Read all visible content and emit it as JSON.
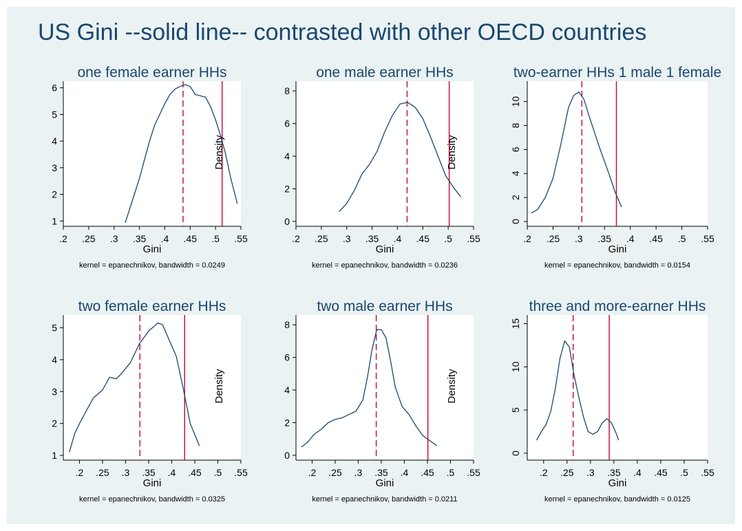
{
  "figure": {
    "title": "US Gini --solid line-- contrasted with other OECD countries"
  },
  "colors": {
    "background": "#eaf2f3",
    "plot_region": "#ffffff",
    "density_line": "#1a476f",
    "us_line": "#c10534",
    "oecd_line": "#c10534",
    "title_text": "#1a476f"
  },
  "chart_data": [
    {
      "type": "line",
      "title": "one female earner HHs",
      "xlabel": "Gini",
      "ylabel": "Density",
      "note": "kernel = epanechnikov, bandwidth = 0.0249",
      "xlim": [
        0.2,
        0.55
      ],
      "ylim": [
        0.8,
        6.25
      ],
      "xticks": [
        ".2",
        ".25",
        ".3",
        ".35",
        ".4",
        ".45",
        ".5",
        ".55"
      ],
      "xtick_values": [
        0.2,
        0.25,
        0.3,
        0.35,
        0.4,
        0.45,
        0.5,
        0.55
      ],
      "yticks": [
        "1",
        "2",
        "3",
        "4",
        "5",
        "6"
      ],
      "ytick_values": [
        1,
        2,
        3,
        4,
        5,
        6
      ],
      "x": [
        0.322,
        0.33,
        0.34,
        0.35,
        0.36,
        0.37,
        0.38,
        0.39,
        0.4,
        0.41,
        0.42,
        0.43,
        0.44,
        0.45,
        0.46,
        0.47,
        0.48,
        0.49,
        0.5,
        0.51,
        0.52,
        0.53,
        0.543
      ],
      "y": [
        0.93,
        1.4,
        2.0,
        2.6,
        3.3,
        4.0,
        4.6,
        5.0,
        5.4,
        5.75,
        5.95,
        6.05,
        6.12,
        6.05,
        5.75,
        5.7,
        5.65,
        5.3,
        4.8,
        4.2,
        3.5,
        2.6,
        1.65
      ],
      "us_value": 0.513,
      "oecd_value": 0.436
    },
    {
      "type": "line",
      "title": "one male earner HHs",
      "xlabel": "Gini",
      "ylabel": "Density",
      "note": "kernel = epanechnikov, bandwidth = 0.0236",
      "xlim": [
        0.2,
        0.55
      ],
      "ylim": [
        -0.3,
        8.6
      ],
      "xticks": [
        ".2",
        ".25",
        ".3",
        ".35",
        ".4",
        ".45",
        ".5",
        ".55"
      ],
      "xtick_values": [
        0.2,
        0.25,
        0.3,
        0.35,
        0.4,
        0.45,
        0.5,
        0.55
      ],
      "yticks": [
        "0",
        "2",
        "4",
        "6",
        "8"
      ],
      "ytick_values": [
        0,
        2,
        4,
        6,
        8
      ],
      "x": [
        0.285,
        0.3,
        0.315,
        0.33,
        0.345,
        0.36,
        0.375,
        0.39,
        0.405,
        0.42,
        0.435,
        0.45,
        0.465,
        0.48,
        0.495,
        0.51,
        0.525
      ],
      "y": [
        0.6,
        1.1,
        1.9,
        2.9,
        3.5,
        4.3,
        5.5,
        6.5,
        7.2,
        7.3,
        7.0,
        6.3,
        5.2,
        4.0,
        2.8,
        2.1,
        1.5
      ],
      "us_value": 0.502,
      "oecd_value": 0.419
    },
    {
      "type": "line",
      "title": "two-earner HHs 1 male 1 female",
      "xlabel": "Gini",
      "ylabel": "",
      "note": "kernel = epanechnikov, bandwidth = 0.0154",
      "xlim": [
        0.2,
        0.55
      ],
      "ylim": [
        -0.4,
        11.7
      ],
      "xticks": [
        ".2",
        ".25",
        ".3",
        ".35",
        ".4",
        ".45",
        ".5",
        ".55"
      ],
      "xtick_values": [
        0.2,
        0.25,
        0.3,
        0.35,
        0.4,
        0.45,
        0.5,
        0.55
      ],
      "yticks": [
        "0",
        "2",
        "4",
        "6",
        "8",
        "10"
      ],
      "ytick_values": [
        0,
        2,
        4,
        6,
        8,
        10
      ],
      "x": [
        0.208,
        0.22,
        0.235,
        0.25,
        0.265,
        0.28,
        0.29,
        0.3,
        0.31,
        0.32,
        0.33,
        0.34,
        0.35,
        0.36,
        0.37,
        0.383
      ],
      "y": [
        0.7,
        1.0,
        2.0,
        3.6,
        6.4,
        9.5,
        10.5,
        10.8,
        10.2,
        8.8,
        7.5,
        6.2,
        5.0,
        3.8,
        2.5,
        1.2
      ],
      "us_value": 0.373,
      "oecd_value": 0.306
    },
    {
      "type": "line",
      "title": "two female earner HHs",
      "xlabel": "Gini",
      "ylabel": "Density",
      "note": "kernel = epanechnikov, bandwidth = 0.0325",
      "xlim": [
        0.165,
        0.55
      ],
      "ylim": [
        0.85,
        5.4
      ],
      "xticks": [
        ".2",
        ".25",
        ".3",
        ".35",
        ".4",
        ".45",
        ".5",
        ".55"
      ],
      "xtick_values": [
        0.2,
        0.25,
        0.3,
        0.35,
        0.4,
        0.45,
        0.5,
        0.55
      ],
      "yticks": [
        "1",
        "2",
        "3",
        "4",
        "5"
      ],
      "ytick_values": [
        1,
        2,
        3,
        4,
        5
      ],
      "x": [
        0.178,
        0.19,
        0.2,
        0.215,
        0.23,
        0.25,
        0.265,
        0.28,
        0.29,
        0.31,
        0.33,
        0.35,
        0.37,
        0.38,
        0.395,
        0.41,
        0.425,
        0.44,
        0.46
      ],
      "y": [
        1.1,
        1.7,
        2.0,
        2.4,
        2.8,
        3.05,
        3.45,
        3.4,
        3.55,
        3.9,
        4.5,
        4.9,
        5.15,
        5.1,
        4.6,
        4.1,
        3.1,
        2.0,
        1.3
      ],
      "us_value": 0.428,
      "oecd_value": 0.331
    },
    {
      "type": "line",
      "title": "two male earner HHs",
      "xlabel": "Gini",
      "ylabel": "Density",
      "note": "kernel = epanechnikov, bandwidth = 0.0211",
      "xlim": [
        0.165,
        0.55
      ],
      "ylim": [
        -0.3,
        8.6
      ],
      "xticks": [
        ".2",
        ".25",
        ".3",
        ".35",
        ".4",
        ".45",
        ".5",
        ".55"
      ],
      "xtick_values": [
        0.2,
        0.25,
        0.3,
        0.35,
        0.4,
        0.45,
        0.5,
        0.55
      ],
      "yticks": [
        "0",
        "2",
        "4",
        "6",
        "8"
      ],
      "ytick_values": [
        0,
        2,
        4,
        6,
        8
      ],
      "x": [
        0.177,
        0.19,
        0.205,
        0.22,
        0.235,
        0.25,
        0.265,
        0.28,
        0.295,
        0.31,
        0.32,
        0.33,
        0.34,
        0.35,
        0.36,
        0.37,
        0.38,
        0.395,
        0.41,
        0.425,
        0.44,
        0.455,
        0.47
      ],
      "y": [
        0.5,
        0.8,
        1.3,
        1.6,
        2.0,
        2.2,
        2.3,
        2.5,
        2.7,
        3.4,
        4.8,
        6.5,
        7.7,
        7.7,
        7.2,
        5.8,
        4.2,
        3.0,
        2.5,
        1.8,
        1.2,
        0.9,
        0.6
      ],
      "us_value": 0.451,
      "oecd_value": 0.339
    },
    {
      "type": "line",
      "title": "three and more-earner HHs",
      "xlabel": "Gini",
      "ylabel": "",
      "note": "kernel = epanechnikov, bandwidth = 0.0125",
      "xlim": [
        0.165,
        0.55
      ],
      "ylim": [
        -0.8,
        16.0
      ],
      "xticks": [
        ".2",
        ".25",
        ".3",
        ".35",
        ".4",
        ".45",
        ".5",
        ".55"
      ],
      "xtick_values": [
        0.2,
        0.25,
        0.3,
        0.35,
        0.4,
        0.45,
        0.5,
        0.55
      ],
      "yticks": [
        "0",
        "5",
        "10",
        "15"
      ],
      "ytick_values": [
        0,
        5,
        10,
        15
      ],
      "x": [
        0.185,
        0.195,
        0.205,
        0.215,
        0.225,
        0.235,
        0.245,
        0.255,
        0.265,
        0.275,
        0.285,
        0.295,
        0.305,
        0.315,
        0.325,
        0.335,
        0.345,
        0.355,
        0.36
      ],
      "y": [
        1.5,
        2.5,
        3.3,
        4.8,
        7.5,
        11.0,
        13.0,
        12.3,
        9.0,
        6.5,
        4.2,
        2.5,
        2.2,
        2.5,
        3.5,
        4.0,
        3.5,
        2.3,
        1.5
      ],
      "us_value": 0.34,
      "oecd_value": 0.263
    }
  ]
}
